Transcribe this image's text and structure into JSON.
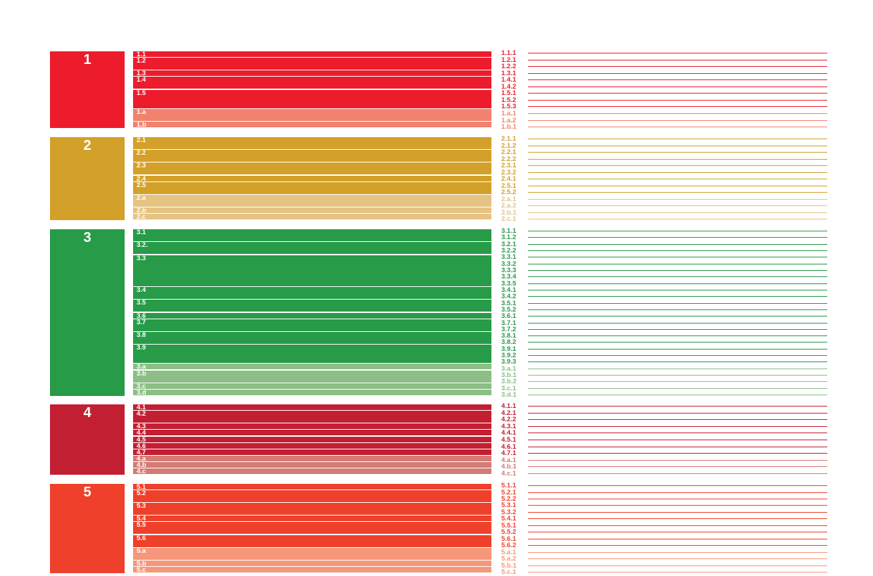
{
  "diagram": {
    "goals": [
      {
        "number": "1",
        "color": "#ec1c2d",
        "light_color": "#f0826e",
        "targets": [
          {
            "label": "1.1",
            "weight": 1,
            "light": false
          },
          {
            "label": "1.2",
            "weight": 2,
            "light": false
          },
          {
            "label": "1.3",
            "weight": 1,
            "light": false
          },
          {
            "label": "1.4",
            "weight": 2,
            "light": false
          },
          {
            "label": "1.5",
            "weight": 3,
            "light": false
          },
          {
            "label": "1.a",
            "weight": 2,
            "light": true
          },
          {
            "label": "1.b",
            "weight": 1,
            "light": true
          }
        ],
        "indicators": [
          {
            "label": "1.1.1",
            "light": false
          },
          {
            "label": "1.2.1",
            "light": false
          },
          {
            "label": "1.2.2",
            "light": false
          },
          {
            "label": "1.3.1",
            "light": false
          },
          {
            "label": "1.4.1",
            "light": false
          },
          {
            "label": "1.4.2",
            "light": false
          },
          {
            "label": "1.5.1",
            "light": false
          },
          {
            "label": "1.5.2",
            "light": false
          },
          {
            "label": "1.5.3",
            "light": false
          },
          {
            "label": "1.a.1",
            "light": true
          },
          {
            "label": "1.a.2",
            "light": true
          },
          {
            "label": "1.b.1",
            "light": true
          }
        ]
      },
      {
        "number": "2",
        "color": "#d3a029",
        "light_color": "#e5c383",
        "targets": [
          {
            "label": "2.1",
            "weight": 2,
            "light": false
          },
          {
            "label": "2.2",
            "weight": 2,
            "light": false
          },
          {
            "label": "2.3",
            "weight": 2,
            "light": false
          },
          {
            "label": "2.4",
            "weight": 1,
            "light": false
          },
          {
            "label": "2.5",
            "weight": 2,
            "light": false
          },
          {
            "label": "2.a",
            "weight": 2,
            "light": true
          },
          {
            "label": "2.b",
            "weight": 1,
            "light": true
          },
          {
            "label": "2.c",
            "weight": 1,
            "light": true
          }
        ],
        "indicators": [
          {
            "label": "2.1.1",
            "light": false
          },
          {
            "label": "2.1.2",
            "light": false
          },
          {
            "label": "2.2.1",
            "light": false
          },
          {
            "label": "2.2.2",
            "light": false
          },
          {
            "label": "2.3.1",
            "light": false
          },
          {
            "label": "2.3.2",
            "light": false
          },
          {
            "label": "2.4.1",
            "light": false
          },
          {
            "label": "2.5.1",
            "light": false
          },
          {
            "label": "2.5.2",
            "light": false
          },
          {
            "label": "2.a.1",
            "light": true
          },
          {
            "label": "2.a.2",
            "light": true
          },
          {
            "label": "2.b.1",
            "light": true
          },
          {
            "label": "2.c.1",
            "light": true
          }
        ]
      },
      {
        "number": "3",
        "color": "#279b48",
        "light_color": "#8cbe86",
        "targets": [
          {
            "label": "3.1",
            "weight": 2,
            "light": false
          },
          {
            "label": "3.2.",
            "weight": 2,
            "light": false
          },
          {
            "label": "3.3",
            "weight": 5,
            "light": false
          },
          {
            "label": "3.4",
            "weight": 2,
            "light": false
          },
          {
            "label": "3.5",
            "weight": 2,
            "light": false
          },
          {
            "label": "3.6",
            "weight": 1,
            "light": false
          },
          {
            "label": "3.7",
            "weight": 2,
            "light": false
          },
          {
            "label": "3.8",
            "weight": 2,
            "light": false
          },
          {
            "label": "3.9",
            "weight": 3,
            "light": false
          },
          {
            "label": "3.a",
            "weight": 1,
            "light": true
          },
          {
            "label": "3.b",
            "weight": 2,
            "light": true
          },
          {
            "label": "3.c",
            "weight": 1,
            "light": true
          },
          {
            "label": "3.d",
            "weight": 1,
            "light": true
          }
        ],
        "indicators": [
          {
            "label": "3.1.1",
            "light": false
          },
          {
            "label": "3.1.2",
            "light": false
          },
          {
            "label": "3.2.1",
            "light": false
          },
          {
            "label": "3.2.2",
            "light": false
          },
          {
            "label": "3.3.1",
            "light": false
          },
          {
            "label": "3.3.2",
            "light": false
          },
          {
            "label": "3.3.3",
            "light": false
          },
          {
            "label": "3.3.4",
            "light": false
          },
          {
            "label": "3.3.5",
            "light": false
          },
          {
            "label": "3.4.1",
            "light": false
          },
          {
            "label": "3.4.2",
            "light": false
          },
          {
            "label": "3.5.1",
            "light": false
          },
          {
            "label": "3.5.2",
            "light": false
          },
          {
            "label": "3.6.1",
            "light": false
          },
          {
            "label": "3.7.1",
            "light": false
          },
          {
            "label": "3.7.2",
            "light": false
          },
          {
            "label": "3.8.1",
            "light": false
          },
          {
            "label": "3.8.2",
            "light": false
          },
          {
            "label": "3.9.1",
            "light": false
          },
          {
            "label": "3.9.2",
            "light": false
          },
          {
            "label": "3.9.3",
            "light": false
          },
          {
            "label": "3.a.1",
            "light": true
          },
          {
            "label": "3.b.1",
            "light": true
          },
          {
            "label": "3.b.2",
            "light": true
          },
          {
            "label": "3.c.1",
            "light": true
          },
          {
            "label": "3.d.1",
            "light": true
          }
        ]
      },
      {
        "number": "4",
        "color": "#c31f33",
        "light_color": "#d37b74",
        "targets": [
          {
            "label": "4.1",
            "weight": 1,
            "light": false
          },
          {
            "label": "4.2",
            "weight": 2,
            "light": false
          },
          {
            "label": "4.3",
            "weight": 1,
            "light": false
          },
          {
            "label": "4.4",
            "weight": 1,
            "light": false
          },
          {
            "label": "4.5",
            "weight": 1,
            "light": false
          },
          {
            "label": "4.6",
            "weight": 1,
            "light": false
          },
          {
            "label": "4.7",
            "weight": 1,
            "light": false
          },
          {
            "label": "4.a",
            "weight": 1,
            "light": true
          },
          {
            "label": "4.b",
            "weight": 1,
            "light": true
          },
          {
            "label": "4.c",
            "weight": 1,
            "light": true
          }
        ],
        "indicators": [
          {
            "label": "4.1.1",
            "light": false
          },
          {
            "label": "4.2.1",
            "light": false
          },
          {
            "label": "4.2.2",
            "light": false
          },
          {
            "label": "4.3.1",
            "light": false
          },
          {
            "label": "4.4.1",
            "light": false
          },
          {
            "label": "4.5.1",
            "light": false
          },
          {
            "label": "4.6.1",
            "light": false
          },
          {
            "label": "4.7.1",
            "light": false
          },
          {
            "label": "4.a.1",
            "light": true
          },
          {
            "label": "4.b.1",
            "light": true
          },
          {
            "label": "4.c.1",
            "light": true
          }
        ]
      },
      {
        "number": "5",
        "color": "#ef402b",
        "light_color": "#f5977a",
        "targets": [
          {
            "label": "5.1",
            "weight": 1,
            "light": false
          },
          {
            "label": "5.2",
            "weight": 2,
            "light": false
          },
          {
            "label": "5.3",
            "weight": 2,
            "light": false
          },
          {
            "label": "5.4",
            "weight": 1,
            "light": false
          },
          {
            "label": "5.5",
            "weight": 2,
            "light": false
          },
          {
            "label": "5.6",
            "weight": 2,
            "light": false
          },
          {
            "label": "5.a",
            "weight": 2,
            "light": true
          },
          {
            "label": "5.b",
            "weight": 1,
            "light": true
          },
          {
            "label": "5.c",
            "weight": 1,
            "light": true
          }
        ],
        "indicators": [
          {
            "label": "5.1.1",
            "light": false
          },
          {
            "label": "5.2.1",
            "light": false
          },
          {
            "label": "5.2.2",
            "light": false
          },
          {
            "label": "5.3.1",
            "light": false
          },
          {
            "label": "5.3.2",
            "light": false
          },
          {
            "label": "5.4.1",
            "light": false
          },
          {
            "label": "5.5.1",
            "light": false
          },
          {
            "label": "5.5.2",
            "light": false
          },
          {
            "label": "5.6.1",
            "light": false
          },
          {
            "label": "5.6.2",
            "light": false
          },
          {
            "label": "5.a.1",
            "light": true
          },
          {
            "label": "5.a.2",
            "light": true
          },
          {
            "label": "5.b.1",
            "light": true
          },
          {
            "label": "5.c.1",
            "light": true
          }
        ]
      }
    ]
  }
}
